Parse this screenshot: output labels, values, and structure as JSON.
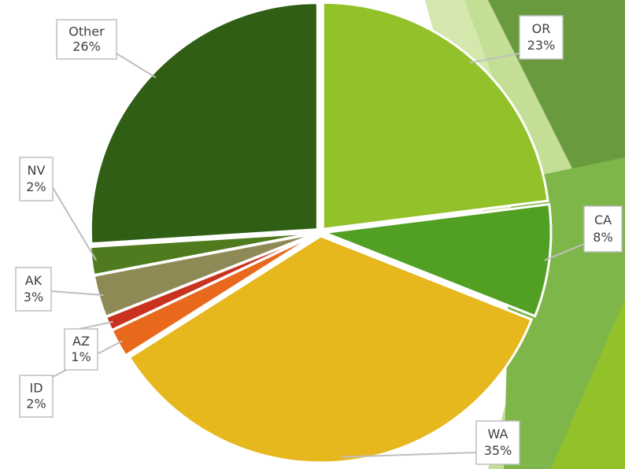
{
  "chart_data": {
    "type": "pie",
    "categories": [
      "OR",
      "CA",
      "WA",
      "ID",
      "AZ",
      "AK",
      "NV",
      "Other"
    ],
    "values": [
      23,
      8,
      35,
      2,
      1,
      3,
      2,
      26
    ],
    "value_labels": [
      "23%",
      "8%",
      "35%",
      "2%",
      "1%",
      "3%",
      "2%",
      "26%"
    ],
    "colors": [
      "#93c12a",
      "#52a023",
      "#e6b81e",
      "#e8681c",
      "#c8321e",
      "#8e8a55",
      "#4f7a1e",
      "#2f5e14"
    ]
  }
}
